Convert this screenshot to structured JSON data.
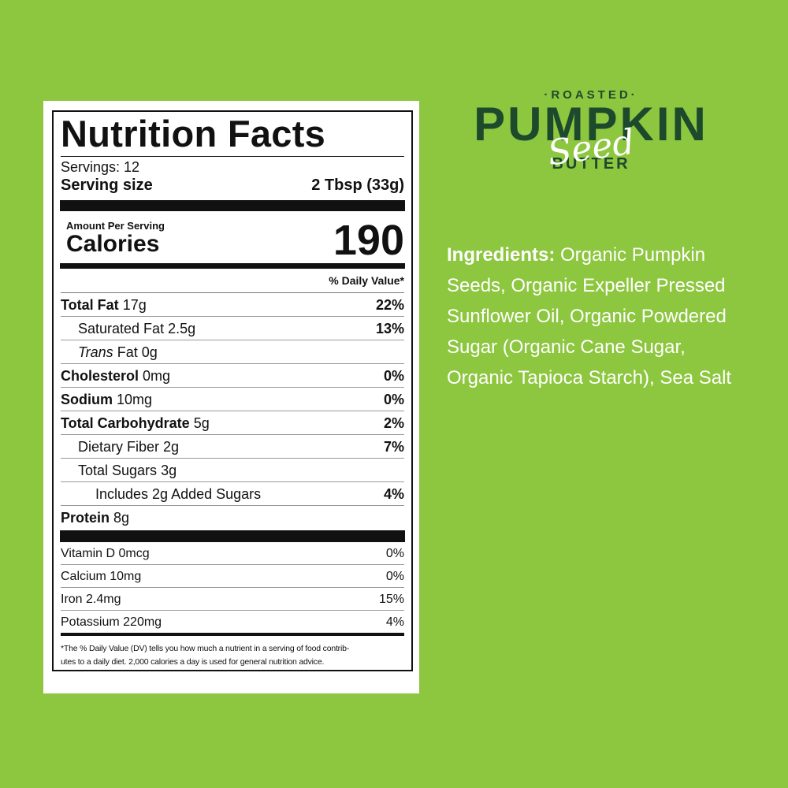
{
  "label": {
    "title": "Nutrition Facts",
    "servings": "Servings: 12",
    "serving_size_label": "Serving size",
    "serving_size_value": "2 Tbsp (33g)",
    "amount_per_serving": "Amount Per Serving",
    "calories_label": "Calories",
    "calories_value": 190,
    "daily_value_header": "% Daily Value*",
    "nutrients": [
      {
        "name": "Total Fat",
        "amount": "17g",
        "dv": "22%"
      },
      {
        "name": "Saturated Fat",
        "amount": "2.5g",
        "dv": "13%"
      },
      {
        "name_italic": "Trans",
        "name": "Fat",
        "amount": "0g"
      },
      {
        "name": "Cholesterol",
        "amount": "0mg",
        "dv": "0%"
      },
      {
        "name": "Sodium",
        "amount": "10mg",
        "dv": "0%"
      },
      {
        "name": "Total Carbohydrate",
        "amount": "5g",
        "dv": "2%"
      },
      {
        "name": "Dietary Fiber",
        "amount": "2g",
        "dv": "7%"
      },
      {
        "name": "Total Sugars",
        "amount": "3g"
      },
      {
        "name": "Includes 2g Added Sugars",
        "dv": "4%"
      },
      {
        "name": "Protein",
        "amount": "8g"
      }
    ],
    "vitamins": [
      {
        "name": "Vitamin D 0mcg",
        "dv": "0%"
      },
      {
        "name": "Calcium 10mg",
        "dv": "0%"
      },
      {
        "name": "Iron 2.4mg",
        "dv": "15%"
      },
      {
        "name": "Potassium 220mg",
        "dv": "4%"
      }
    ],
    "footnote": [
      "*The % Daily Value (DV) tells you how much a nutrient in a serving of food contrib-",
      "utes to a daily diet. 2,000 calories a day is used for general nutrition advice."
    ]
  },
  "brand": {
    "top": "·ROASTED·",
    "main": "PUMPKIN",
    "script": "Seed",
    "bottom": "BUTTER"
  },
  "ingredients": {
    "label": "Ingredients:",
    "lines": [
      "Organic Pumpkin",
      "Seeds, Organic Expeller Pressed",
      "Sunflower Oil, Organic Powdered",
      "Sugar (Organic Cane Sugar,",
      "Organic Tapioca Starch), Sea Salt"
    ]
  }
}
